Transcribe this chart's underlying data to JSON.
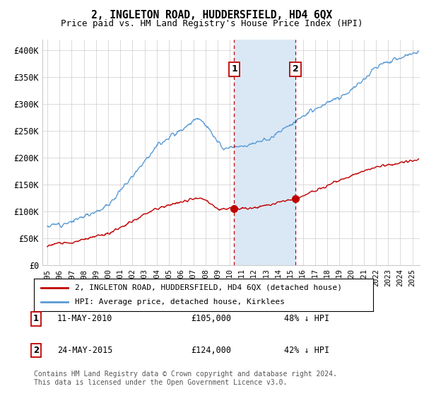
{
  "title": "2, INGLETON ROAD, HUDDERSFIELD, HD4 6QX",
  "subtitle": "Price paid vs. HM Land Registry's House Price Index (HPI)",
  "hpi_label": "HPI: Average price, detached house, Kirklees",
  "property_label": "2, INGLETON ROAD, HUDDERSFIELD, HD4 6QX (detached house)",
  "footer": "Contains HM Land Registry data © Crown copyright and database right 2024.\nThis data is licensed under the Open Government Licence v3.0.",
  "sale1": {
    "date": "11-MAY-2010",
    "price": "£105,000",
    "pct": "48% ↓ HPI",
    "year": 2010.36
  },
  "sale2": {
    "date": "24-MAY-2015",
    "price": "£124,000",
    "pct": "42% ↓ HPI",
    "year": 2015.39
  },
  "ylim": [
    0,
    420000
  ],
  "yticks": [
    0,
    50000,
    100000,
    150000,
    200000,
    250000,
    300000,
    350000,
    400000
  ],
  "ytick_labels": [
    "£0",
    "£50K",
    "£100K",
    "£150K",
    "£200K",
    "£250K",
    "£300K",
    "£350K",
    "£400K"
  ],
  "hpi_color": "#5b9bd5",
  "property_color": "#c00000",
  "sale_marker_color": "#c00000",
  "shaded_color": "#dae8f5",
  "dashed_color": "#c00000",
  "background_color": "#ffffff",
  "grid_color": "#cccccc",
  "sale_box_color": "#c00000",
  "xlim_left": 1994.6,
  "xlim_right": 2025.6
}
